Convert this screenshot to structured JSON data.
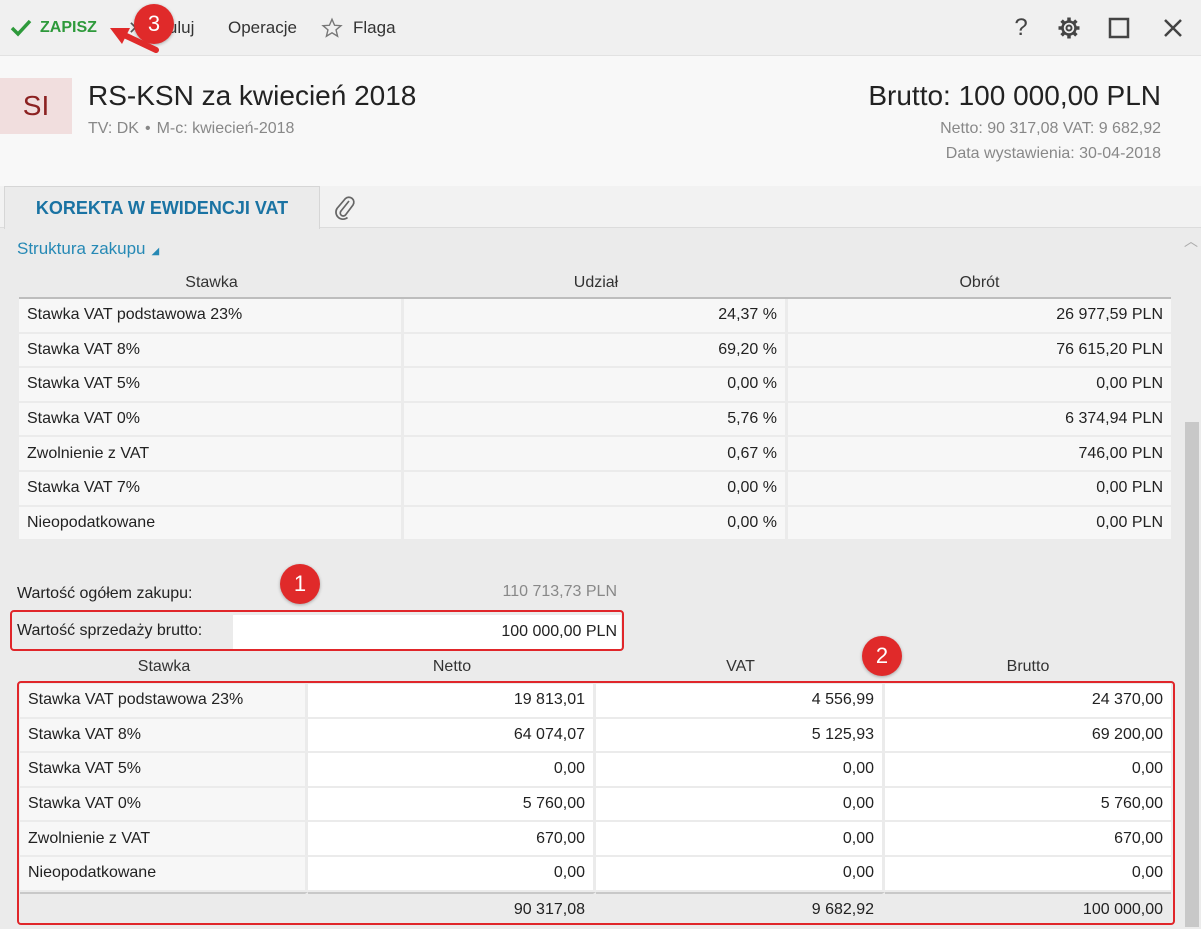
{
  "toolbar": {
    "save_label": "ZAPISZ",
    "cancel_label": "Anuluj",
    "operations_label": "Operacje",
    "flag_label": "Flaga",
    "help_label": "?"
  },
  "header": {
    "avatar": "SI",
    "title": "RS-KSN za kwiecień 2018",
    "sub_tv": "TV: DK",
    "sub_mc": "M-c: kwiecień-2018",
    "brutto": "Brutto: 100 000,00 PLN",
    "netto_vat": "Netto: 90 317,08 VAT: 9 682,92",
    "date": "Data wystawienia: 30-04-2018"
  },
  "tabs": {
    "active": "KOREKTA W EWIDENCJI VAT"
  },
  "section": {
    "title": "Struktura zakupu"
  },
  "purchase_table": {
    "headers": [
      "Stawka",
      "Udział",
      "Obrót"
    ],
    "rows": [
      [
        "Stawka VAT podstawowa 23%",
        "24,37 %",
        "26 977,59 PLN"
      ],
      [
        "Stawka VAT 8%",
        "69,20 %",
        "76 615,20 PLN"
      ],
      [
        "Stawka VAT 5%",
        "0,00 %",
        "0,00 PLN"
      ],
      [
        "Stawka VAT 0%",
        "5,76 %",
        "6 374,94 PLN"
      ],
      [
        "Zwolnienie z VAT",
        "0,67 %",
        "746,00 PLN"
      ],
      [
        "Stawka VAT 7%",
        "0,00 %",
        "0,00 PLN"
      ],
      [
        "Nieopodatkowane",
        "0,00 %",
        "0,00 PLN"
      ]
    ]
  },
  "fields": {
    "total_purchase_label": "Wartość ogółem zakupu:",
    "total_purchase_value": "110 713,73 PLN",
    "sales_gross_label": "Wartość sprzedaży brutto:",
    "sales_gross_value": "100 000,00 PLN"
  },
  "vat_table": {
    "headers": [
      "Stawka",
      "Netto",
      "VAT",
      "Brutto"
    ],
    "rows": [
      [
        "Stawka VAT podstawowa 23%",
        "19 813,01",
        "4 556,99",
        "24 370,00"
      ],
      [
        "Stawka VAT 8%",
        "64 074,07",
        "5 125,93",
        "69 200,00"
      ],
      [
        "Stawka VAT 5%",
        "0,00",
        "0,00",
        "0,00"
      ],
      [
        "Stawka VAT 0%",
        "5 760,00",
        "0,00",
        "5 760,00"
      ],
      [
        "Zwolnienie z VAT",
        "670,00",
        "0,00",
        "670,00"
      ],
      [
        "Nieopodatkowane",
        "0,00",
        "0,00",
        "0,00"
      ]
    ],
    "totals": [
      "",
      "90 317,08",
      "9 682,92",
      "100 000,00"
    ]
  },
  "annotations": [
    "1",
    "2",
    "3"
  ],
  "colors": {
    "save_green": "#2e9a3b",
    "accent_blue": "#1a73a3",
    "annotation_red": "#e0262a",
    "avatar_bg": "#f1dede",
    "avatar_fg": "#8c2222"
  }
}
